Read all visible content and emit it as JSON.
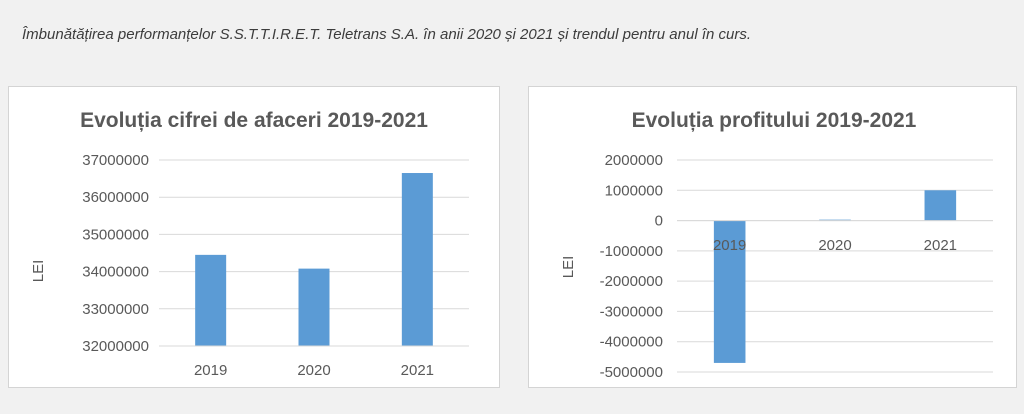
{
  "caption": "Îmbunătățirea performanțelor S.S.T.T.I.R.E.T. Teletrans S.A. în anii 2020 și 2021 și trendul pentru anul în curs.",
  "chart_data": [
    {
      "type": "bar",
      "title": "Evoluția cifrei de afaceri 2019-2021",
      "xlabel": "",
      "ylabel": "LEI",
      "categories": [
        "2019",
        "2020",
        "2021"
      ],
      "values": [
        34450000,
        34080000,
        36650000
      ],
      "ylim": [
        32000000,
        37000000
      ],
      "yticks": [
        37000000,
        36000000,
        35000000,
        34000000,
        33000000,
        32000000
      ],
      "bar_color": "#5b9bd5",
      "grid": true
    },
    {
      "type": "bar",
      "title": "Evoluția profitului 2019-2021",
      "xlabel": "",
      "ylabel": "LEI",
      "categories": [
        "2019",
        "2020",
        "2021"
      ],
      "values": [
        -4700000,
        30000,
        1000000
      ],
      "ylim": [
        -5000000,
        2000000
      ],
      "yticks": [
        2000000,
        1000000,
        0,
        -1000000,
        -2000000,
        -3000000,
        -4000000,
        -5000000
      ],
      "bar_color": "#5b9bd5",
      "grid": true
    }
  ]
}
